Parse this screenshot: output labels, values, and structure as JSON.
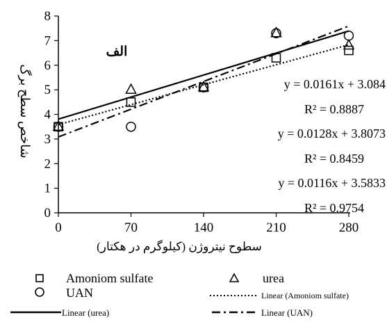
{
  "chart_data": {
    "type": "scatter",
    "panel_label": "الف",
    "ylabel": "شاخص سطح برگ",
    "xlabel": "سطوح نیتروژن (کیلوگرم در هکتار)",
    "xlim": [
      0,
      280
    ],
    "ylim": [
      0,
      8
    ],
    "x_ticks": [
      "0",
      "70",
      "140",
      "210",
      "280"
    ],
    "y_ticks": [
      "0",
      "1",
      "2",
      "3",
      "4",
      "5",
      "6",
      "7",
      "8"
    ],
    "x": [
      0,
      70,
      140,
      210,
      280
    ],
    "series": [
      {
        "name": "Amoniom sulfate",
        "marker": "square",
        "values": [
          3.5,
          4.5,
          5.1,
          6.3,
          6.6
        ]
      },
      {
        "name": "urea",
        "marker": "triangle",
        "values": [
          3.5,
          5.0,
          5.1,
          7.3,
          6.8
        ]
      },
      {
        "name": "UAN",
        "marker": "circle",
        "values": [
          3.5,
          3.5,
          5.1,
          7.3,
          7.2
        ]
      }
    ],
    "trendlines": [
      {
        "name": "Linear (urea)",
        "style": "solid",
        "slope": 0.0128,
        "intercept": 3.8073
      },
      {
        "name": "Linear (Amoniom sulfate)",
        "style": "dotted",
        "slope": 0.0116,
        "intercept": 3.5833
      },
      {
        "name": "Linear (UAN)",
        "style": "dashdot",
        "slope": 0.0161,
        "intercept": 3.084
      }
    ],
    "equations": [
      {
        "eq": "y = 0.0161x + 3.084",
        "r2": "R² = 0.8887"
      },
      {
        "eq": "y = 0.0128x + 3.8073",
        "r2": "R² = 0.8459"
      },
      {
        "eq": "y = 0.0116x + 3.5833",
        "r2": "R² = 0.9754"
      }
    ],
    "legend_position": "bottom",
    "grid": false
  }
}
